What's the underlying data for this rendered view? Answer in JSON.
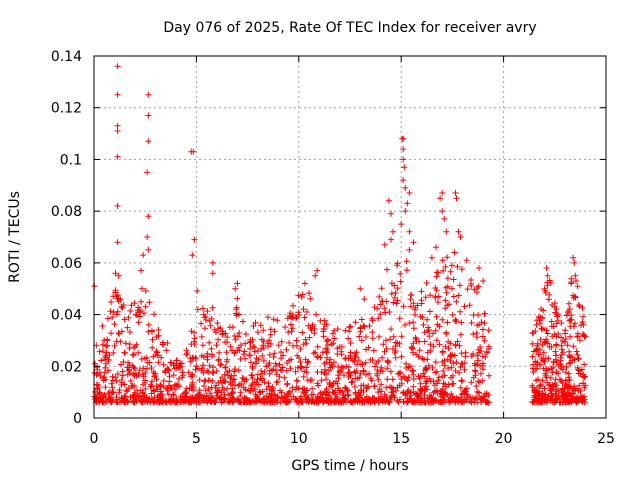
{
  "chart_data": {
    "type": "scatter",
    "title": "Day 076 of 2025, Rate Of TEC Index for receiver avry",
    "xlabel": "GPS time / hours",
    "ylabel": "ROTI / TECUs",
    "xlim": [
      0,
      25
    ],
    "ylim": [
      0,
      0.14
    ],
    "xticks": [
      0,
      5,
      10,
      15,
      20,
      25
    ],
    "xtick_labels": [
      "0",
      "5",
      "10",
      "15",
      "20",
      "25"
    ],
    "yticks": [
      0,
      0.02,
      0.04,
      0.06,
      0.08,
      0.1,
      0.12,
      0.14
    ],
    "ytick_labels": [
      "0",
      "0.02",
      "0.04",
      "0.06",
      "0.08",
      "0.1",
      "0.12",
      "0.14"
    ],
    "grid": true,
    "marker": "+",
    "color": "#ff0000",
    "envelope_note_hours": [
      [
        0.0,
        0.035
      ],
      [
        0.5,
        0.038
      ],
      [
        1.0,
        0.05
      ],
      [
        1.5,
        0.045
      ],
      [
        2.0,
        0.05
      ],
      [
        2.5,
        0.052
      ],
      [
        3.0,
        0.04
      ],
      [
        3.5,
        0.03
      ],
      [
        4.0,
        0.028
      ],
      [
        4.5,
        0.026
      ],
      [
        5.0,
        0.05
      ],
      [
        5.5,
        0.042
      ],
      [
        6.0,
        0.045
      ],
      [
        6.5,
        0.04
      ],
      [
        7.0,
        0.048
      ],
      [
        7.5,
        0.035
      ],
      [
        8.0,
        0.038
      ],
      [
        8.5,
        0.042
      ],
      [
        9.0,
        0.04
      ],
      [
        9.5,
        0.045
      ],
      [
        10.0,
        0.048
      ],
      [
        10.5,
        0.05
      ],
      [
        11.0,
        0.045
      ],
      [
        11.5,
        0.035
      ],
      [
        12.0,
        0.035
      ],
      [
        12.5,
        0.036
      ],
      [
        13.0,
        0.038
      ],
      [
        13.5,
        0.042
      ],
      [
        14.0,
        0.05
      ],
      [
        14.5,
        0.065
      ],
      [
        15.0,
        0.07
      ],
      [
        15.5,
        0.06
      ],
      [
        16.0,
        0.05
      ],
      [
        16.5,
        0.055
      ],
      [
        17.0,
        0.065
      ],
      [
        17.5,
        0.06
      ],
      [
        18.0,
        0.065
      ],
      [
        18.5,
        0.055
      ],
      [
        19.0,
        0.05
      ],
      [
        19.3,
        0.045
      ]
    ],
    "gap_hours": [
      19.4,
      21.3
    ],
    "late_segment": [
      [
        21.4,
        0.035
      ],
      [
        21.8,
        0.042
      ],
      [
        22.2,
        0.055
      ],
      [
        22.6,
        0.045
      ],
      [
        23.0,
        0.035
      ],
      [
        23.4,
        0.06
      ],
      [
        23.8,
        0.045
      ],
      [
        24.0,
        0.04
      ]
    ],
    "notable_points": [
      {
        "x": 0.02,
        "y": 0.051
      },
      {
        "x": 1.15,
        "y": 0.136
      },
      {
        "x": 1.15,
        "y": 0.125
      },
      {
        "x": 1.15,
        "y": 0.113
      },
      {
        "x": 1.15,
        "y": 0.111
      },
      {
        "x": 1.15,
        "y": 0.101
      },
      {
        "x": 1.15,
        "y": 0.082
      },
      {
        "x": 1.15,
        "y": 0.068
      },
      {
        "x": 1.05,
        "y": 0.056
      },
      {
        "x": 1.2,
        "y": 0.055
      },
      {
        "x": 2.65,
        "y": 0.125
      },
      {
        "x": 2.65,
        "y": 0.117
      },
      {
        "x": 2.65,
        "y": 0.107
      },
      {
        "x": 2.6,
        "y": 0.095
      },
      {
        "x": 2.65,
        "y": 0.078
      },
      {
        "x": 2.6,
        "y": 0.07
      },
      {
        "x": 2.65,
        "y": 0.065
      },
      {
        "x": 2.4,
        "y": 0.063
      },
      {
        "x": 2.3,
        "y": 0.057
      },
      {
        "x": 4.75,
        "y": 0.103
      },
      {
        "x": 4.85,
        "y": 0.103
      },
      {
        "x": 4.9,
        "y": 0.069
      },
      {
        "x": 4.8,
        "y": 0.063
      },
      {
        "x": 5.8,
        "y": 0.06
      },
      {
        "x": 5.8,
        "y": 0.056
      },
      {
        "x": 7.0,
        "y": 0.052
      },
      {
        "x": 6.9,
        "y": 0.05
      },
      {
        "x": 10.9,
        "y": 0.057
      },
      {
        "x": 10.8,
        "y": 0.055
      },
      {
        "x": 10.3,
        "y": 0.052
      },
      {
        "x": 13.0,
        "y": 0.05
      },
      {
        "x": 13.2,
        "y": 0.046
      },
      {
        "x": 14.4,
        "y": 0.084
      },
      {
        "x": 14.5,
        "y": 0.079
      },
      {
        "x": 14.6,
        "y": 0.072
      },
      {
        "x": 14.5,
        "y": 0.069
      },
      {
        "x": 14.2,
        "y": 0.067
      },
      {
        "x": 15.1,
        "y": 0.108
      },
      {
        "x": 15.05,
        "y": 0.108
      },
      {
        "x": 15.1,
        "y": 0.104
      },
      {
        "x": 15.1,
        "y": 0.1
      },
      {
        "x": 15.15,
        "y": 0.097
      },
      {
        "x": 15.1,
        "y": 0.092
      },
      {
        "x": 15.2,
        "y": 0.089
      },
      {
        "x": 15.4,
        "y": 0.087
      },
      {
        "x": 15.3,
        "y": 0.083
      },
      {
        "x": 15.2,
        "y": 0.08
      },
      {
        "x": 15.0,
        "y": 0.075
      },
      {
        "x": 15.4,
        "y": 0.072
      },
      {
        "x": 15.6,
        "y": 0.068
      },
      {
        "x": 15.4,
        "y": 0.065
      },
      {
        "x": 17.0,
        "y": 0.087
      },
      {
        "x": 16.9,
        "y": 0.085
      },
      {
        "x": 17.0,
        "y": 0.08
      },
      {
        "x": 17.1,
        "y": 0.077
      },
      {
        "x": 17.2,
        "y": 0.072
      },
      {
        "x": 16.7,
        "y": 0.066
      },
      {
        "x": 16.5,
        "y": 0.062
      },
      {
        "x": 17.65,
        "y": 0.087
      },
      {
        "x": 17.7,
        "y": 0.085
      },
      {
        "x": 17.8,
        "y": 0.072
      },
      {
        "x": 17.9,
        "y": 0.07
      },
      {
        "x": 17.6,
        "y": 0.064
      },
      {
        "x": 18.2,
        "y": 0.061
      },
      {
        "x": 18.8,
        "y": 0.058
      },
      {
        "x": 19.0,
        "y": 0.053
      },
      {
        "x": 22.1,
        "y": 0.058
      },
      {
        "x": 22.15,
        "y": 0.055
      },
      {
        "x": 22.0,
        "y": 0.05
      },
      {
        "x": 23.4,
        "y": 0.062
      },
      {
        "x": 23.45,
        "y": 0.06
      },
      {
        "x": 23.5,
        "y": 0.055
      },
      {
        "x": 23.3,
        "y": 0.052
      }
    ]
  }
}
